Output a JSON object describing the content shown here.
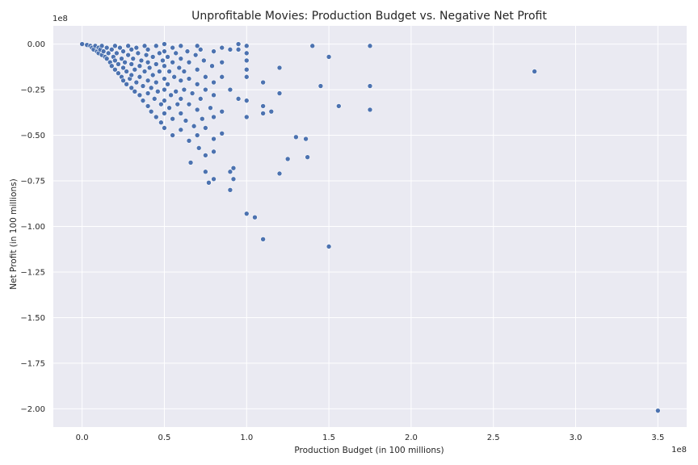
{
  "chart_data": {
    "type": "scatter",
    "title": "Unprofitable Movies: Production Budget vs. Negative Net Profit",
    "xlabel": "Production Budget (in 100 millions)",
    "ylabel": "Net Profit (in 100 millions)",
    "x_offset_label": "1e8",
    "y_offset_label": "1e8",
    "xlim": [
      -0.175,
      3.675
    ],
    "ylim": [
      -2.1,
      0.1
    ],
    "x_ticks": [
      {
        "value": 0.0,
        "label": "0.0"
      },
      {
        "value": 0.5,
        "label": "0.5"
      },
      {
        "value": 1.0,
        "label": "1.0"
      },
      {
        "value": 1.5,
        "label": "1.5"
      },
      {
        "value": 2.0,
        "label": "2.0"
      },
      {
        "value": 2.5,
        "label": "2.5"
      },
      {
        "value": 3.0,
        "label": "3.0"
      },
      {
        "value": 3.5,
        "label": "3.5"
      }
    ],
    "y_ticks": [
      {
        "value": 0.0,
        "label": "0.00"
      },
      {
        "value": -0.25,
        "label": "−0.25"
      },
      {
        "value": -0.5,
        "label": "−0.50"
      },
      {
        "value": -0.75,
        "label": "−0.75"
      },
      {
        "value": -1.0,
        "label": "−1.00"
      },
      {
        "value": -1.25,
        "label": "−1.25"
      },
      {
        "value": -1.5,
        "label": "−1.50"
      },
      {
        "value": -1.75,
        "label": "−1.75"
      },
      {
        "value": -2.0,
        "label": "−2.00"
      }
    ],
    "grid": true,
    "colors": {
      "background": "#eaeaf2",
      "grid": "#ffffff",
      "point": "#4c72b0",
      "point_edge": "#ffffff"
    },
    "points": [
      [
        0.0,
        0.0
      ],
      [
        0.03,
        -0.005
      ],
      [
        0.05,
        -0.01
      ],
      [
        0.06,
        -0.02
      ],
      [
        0.07,
        -0.03
      ],
      [
        0.08,
        -0.01
      ],
      [
        0.09,
        -0.04
      ],
      [
        0.1,
        -0.02
      ],
      [
        0.1,
        -0.05
      ],
      [
        0.11,
        -0.03
      ],
      [
        0.12,
        -0.06
      ],
      [
        0.12,
        -0.01
      ],
      [
        0.13,
        -0.04
      ],
      [
        0.14,
        -0.07
      ],
      [
        0.15,
        -0.02
      ],
      [
        0.15,
        -0.08
      ],
      [
        0.16,
        -0.05
      ],
      [
        0.17,
        -0.1
      ],
      [
        0.18,
        -0.03
      ],
      [
        0.18,
        -0.12
      ],
      [
        0.19,
        -0.07
      ],
      [
        0.2,
        -0.01
      ],
      [
        0.2,
        -0.09
      ],
      [
        0.2,
        -0.14
      ],
      [
        0.21,
        -0.05
      ],
      [
        0.22,
        -0.11
      ],
      [
        0.22,
        -0.16
      ],
      [
        0.23,
        -0.02
      ],
      [
        0.24,
        -0.08
      ],
      [
        0.24,
        -0.18
      ],
      [
        0.25,
        -0.04
      ],
      [
        0.25,
        -0.13
      ],
      [
        0.25,
        -0.2
      ],
      [
        0.26,
        -0.1
      ],
      [
        0.27,
        -0.15
      ],
      [
        0.27,
        -0.22
      ],
      [
        0.28,
        -0.01
      ],
      [
        0.28,
        -0.06
      ],
      [
        0.29,
        -0.19
      ],
      [
        0.3,
        -0.03
      ],
      [
        0.3,
        -0.11
      ],
      [
        0.3,
        -0.17
      ],
      [
        0.3,
        -0.24
      ],
      [
        0.31,
        -0.08
      ],
      [
        0.32,
        -0.14
      ],
      [
        0.32,
        -0.26
      ],
      [
        0.33,
        -0.02
      ],
      [
        0.33,
        -0.21
      ],
      [
        0.34,
        -0.05
      ],
      [
        0.35,
        -0.12
      ],
      [
        0.35,
        -0.18
      ],
      [
        0.35,
        -0.28
      ],
      [
        0.36,
        -0.09
      ],
      [
        0.37,
        -0.23
      ],
      [
        0.37,
        -0.31
      ],
      [
        0.38,
        -0.01
      ],
      [
        0.38,
        -0.15
      ],
      [
        0.39,
        -0.06
      ],
      [
        0.4,
        -0.03
      ],
      [
        0.4,
        -0.1
      ],
      [
        0.4,
        -0.2
      ],
      [
        0.4,
        -0.27
      ],
      [
        0.4,
        -0.34
      ],
      [
        0.41,
        -0.13
      ],
      [
        0.42,
        -0.24
      ],
      [
        0.42,
        -0.37
      ],
      [
        0.43,
        -0.07
      ],
      [
        0.43,
        -0.17
      ],
      [
        0.44,
        -0.3
      ],
      [
        0.45,
        -0.01
      ],
      [
        0.45,
        -0.11
      ],
      [
        0.45,
        -0.21
      ],
      [
        0.45,
        -0.4
      ],
      [
        0.46,
        -0.26
      ],
      [
        0.47,
        -0.05
      ],
      [
        0.47,
        -0.15
      ],
      [
        0.48,
        -0.33
      ],
      [
        0.48,
        -0.43
      ],
      [
        0.49,
        -0.09
      ],
      [
        0.5,
        -0.0
      ],
      [
        0.5,
        -0.04
      ],
      [
        0.5,
        -0.12
      ],
      [
        0.5,
        -0.19
      ],
      [
        0.5,
        -0.25
      ],
      [
        0.5,
        -0.31
      ],
      [
        0.5,
        -0.38
      ],
      [
        0.5,
        -0.46
      ],
      [
        0.52,
        -0.07
      ],
      [
        0.52,
        -0.22
      ],
      [
        0.53,
        -0.15
      ],
      [
        0.53,
        -0.35
      ],
      [
        0.54,
        -0.28
      ],
      [
        0.55,
        -0.02
      ],
      [
        0.55,
        -0.1
      ],
      [
        0.55,
        -0.41
      ],
      [
        0.55,
        -0.5
      ],
      [
        0.56,
        -0.18
      ],
      [
        0.57,
        -0.05
      ],
      [
        0.57,
        -0.26
      ],
      [
        0.58,
        -0.33
      ],
      [
        0.59,
        -0.13
      ],
      [
        0.6,
        -0.01
      ],
      [
        0.6,
        -0.08
      ],
      [
        0.6,
        -0.2
      ],
      [
        0.6,
        -0.3
      ],
      [
        0.6,
        -0.38
      ],
      [
        0.6,
        -0.47
      ],
      [
        0.62,
        -0.15
      ],
      [
        0.62,
        -0.25
      ],
      [
        0.63,
        -0.42
      ],
      [
        0.64,
        -0.04
      ],
      [
        0.65,
        -0.1
      ],
      [
        0.65,
        -0.19
      ],
      [
        0.65,
        -0.33
      ],
      [
        0.65,
        -0.53
      ],
      [
        0.66,
        -0.65
      ],
      [
        0.67,
        -0.27
      ],
      [
        0.68,
        -0.45
      ],
      [
        0.69,
        -0.06
      ],
      [
        0.7,
        -0.01
      ],
      [
        0.7,
        -0.14
      ],
      [
        0.7,
        -0.22
      ],
      [
        0.7,
        -0.36
      ],
      [
        0.7,
        -0.5
      ],
      [
        0.71,
        -0.57
      ],
      [
        0.72,
        -0.03
      ],
      [
        0.72,
        -0.3
      ],
      [
        0.73,
        -0.41
      ],
      [
        0.74,
        -0.09
      ],
      [
        0.75,
        -0.18
      ],
      [
        0.75,
        -0.25
      ],
      [
        0.75,
        -0.46
      ],
      [
        0.75,
        -0.61
      ],
      [
        0.75,
        -0.7
      ],
      [
        0.77,
        -0.76
      ],
      [
        0.78,
        -0.35
      ],
      [
        0.79,
        -0.12
      ],
      [
        0.8,
        -0.04
      ],
      [
        0.8,
        -0.21
      ],
      [
        0.8,
        -0.28
      ],
      [
        0.8,
        -0.4
      ],
      [
        0.8,
        -0.52
      ],
      [
        0.8,
        -0.59
      ],
      [
        0.8,
        -0.74
      ],
      [
        0.85,
        -0.02
      ],
      [
        0.85,
        -0.1
      ],
      [
        0.85,
        -0.18
      ],
      [
        0.85,
        -0.37
      ],
      [
        0.85,
        -0.49
      ],
      [
        0.9,
        -0.03
      ],
      [
        0.9,
        -0.25
      ],
      [
        0.9,
        -0.7
      ],
      [
        0.9,
        -0.8
      ],
      [
        0.92,
        -0.68
      ],
      [
        0.92,
        -0.74
      ],
      [
        0.95,
        0.0
      ],
      [
        0.95,
        -0.03
      ],
      [
        0.95,
        -0.3
      ],
      [
        1.0,
        -0.01
      ],
      [
        1.0,
        -0.05
      ],
      [
        1.0,
        -0.09
      ],
      [
        1.0,
        -0.14
      ],
      [
        1.0,
        -0.18
      ],
      [
        1.0,
        -0.31
      ],
      [
        1.0,
        -0.4
      ],
      [
        1.0,
        -0.93
      ],
      [
        1.05,
        -0.95
      ],
      [
        1.1,
        -0.21
      ],
      [
        1.1,
        -0.34
      ],
      [
        1.1,
        -0.38
      ],
      [
        1.1,
        -1.07
      ],
      [
        1.15,
        -0.37
      ],
      [
        1.2,
        -0.13
      ],
      [
        1.2,
        -0.27
      ],
      [
        1.2,
        -0.71
      ],
      [
        1.25,
        -0.63
      ],
      [
        1.3,
        -0.51
      ],
      [
        1.36,
        -0.52
      ],
      [
        1.37,
        -0.62
      ],
      [
        1.4,
        -0.01
      ],
      [
        1.45,
        -0.23
      ],
      [
        1.5,
        -0.07
      ],
      [
        1.5,
        -1.11
      ],
      [
        1.56,
        -0.34
      ],
      [
        1.75,
        -0.01
      ],
      [
        1.75,
        -0.23
      ],
      [
        1.75,
        -0.36
      ],
      [
        2.75,
        -0.15
      ],
      [
        3.5,
        -2.01
      ]
    ]
  }
}
